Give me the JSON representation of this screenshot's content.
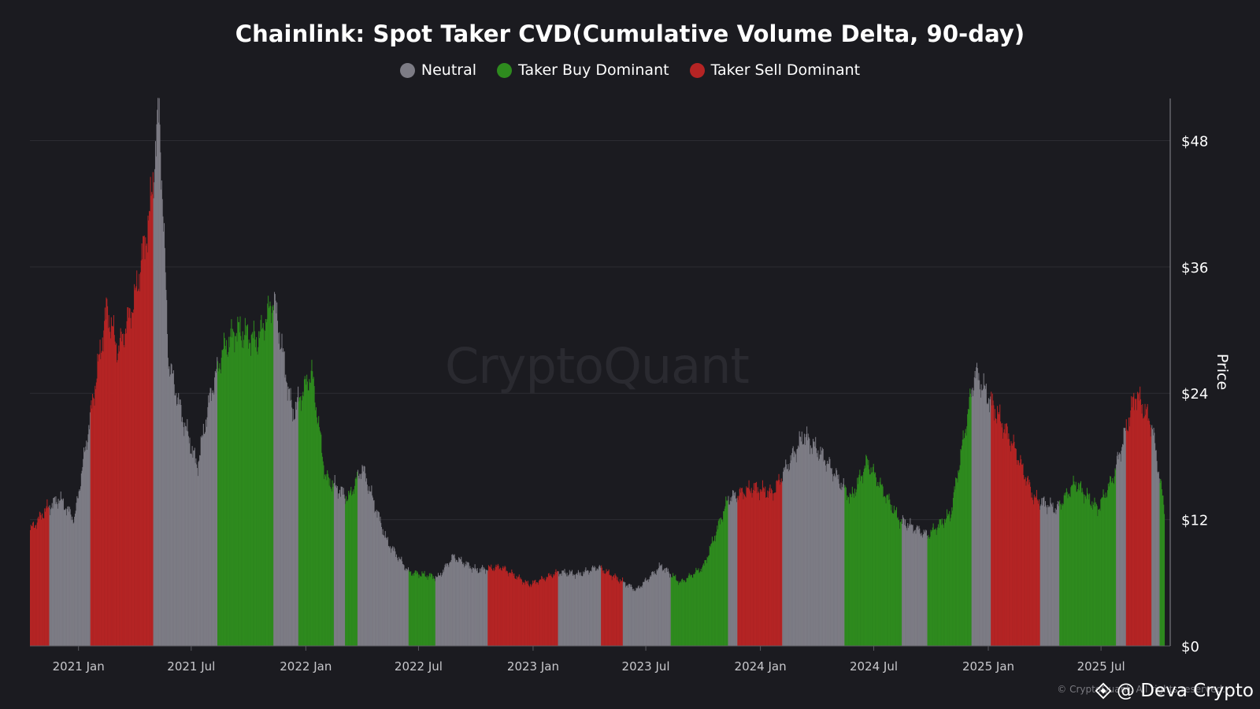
{
  "chart_data": {
    "type": "bar",
    "title": "Chainlink: Spot Taker CVD(Cumulative Volume Delta, 90-day)",
    "ylabel": "Price",
    "ylim": [
      0,
      52
    ],
    "y_ticks": [
      "$0",
      "$12",
      "$24",
      "$36",
      "$48"
    ],
    "y_tick_values": [
      0,
      12,
      24,
      36,
      48
    ],
    "x_ticks": [
      "2021 Jan",
      "2021 Jul",
      "2022 Jan",
      "2022 Jul",
      "2023 Jan",
      "2023 Jul",
      "2024 Jan",
      "2024 Jul",
      "2025 Jan",
      "2025 Jul"
    ],
    "x_tick_dates": [
      "2021-01-01",
      "2021-07-01",
      "2022-01-01",
      "2022-07-01",
      "2023-01-01",
      "2023-07-01",
      "2024-01-01",
      "2024-07-01",
      "2025-01-01",
      "2025-07-01"
    ],
    "x_range": [
      "2020-10-15",
      "2025-10-10"
    ],
    "legend": [
      {
        "name": "Neutral",
        "color": "#7d7c85"
      },
      {
        "name": "Taker Buy Dominant",
        "color": "#2e8b1e"
      },
      {
        "name": "Taker Sell Dominant",
        "color": "#b52424"
      }
    ],
    "series": [
      {
        "name": "Price",
        "points": [
          [
            "2020-10-15",
            11.0
          ],
          [
            "2020-11-10",
            13.0
          ],
          [
            "2020-12-01",
            14.0
          ],
          [
            "2020-12-25",
            12.0
          ],
          [
            "2021-01-20",
            22.0
          ],
          [
            "2021-02-15",
            32.0
          ],
          [
            "2021-03-05",
            28.0
          ],
          [
            "2021-04-01",
            33.0
          ],
          [
            "2021-04-25",
            41.0
          ],
          [
            "2021-05-10",
            51.0
          ],
          [
            "2021-05-25",
            27.0
          ],
          [
            "2021-06-15",
            22.0
          ],
          [
            "2021-07-10",
            17.0
          ],
          [
            "2021-08-01",
            24.0
          ],
          [
            "2021-08-20",
            28.0
          ],
          [
            "2021-09-10",
            30.0
          ],
          [
            "2021-10-15",
            29.0
          ],
          [
            "2021-11-10",
            33.0
          ],
          [
            "2021-12-10",
            22.0
          ],
          [
            "2022-01-10",
            26.0
          ],
          [
            "2022-02-01",
            16.0
          ],
          [
            "2022-03-10",
            14.0
          ],
          [
            "2022-04-01",
            17.0
          ],
          [
            "2022-05-10",
            10.0
          ],
          [
            "2022-06-15",
            7.0
          ],
          [
            "2022-08-01",
            6.5
          ],
          [
            "2022-08-25",
            8.5
          ],
          [
            "2022-10-01",
            7.2
          ],
          [
            "2022-11-10",
            7.5
          ],
          [
            "2022-12-25",
            5.8
          ],
          [
            "2023-02-10",
            7.0
          ],
          [
            "2023-03-15",
            6.8
          ],
          [
            "2023-04-15",
            7.5
          ],
          [
            "2023-06-15",
            5.3
          ],
          [
            "2023-07-25",
            7.6
          ],
          [
            "2023-08-25",
            6.0
          ],
          [
            "2023-10-01",
            7.5
          ],
          [
            "2023-11-10",
            14.0
          ],
          [
            "2023-12-20",
            15.0
          ],
          [
            "2024-01-20",
            14.5
          ],
          [
            "2024-03-10",
            20.0
          ],
          [
            "2024-04-10",
            18.0
          ],
          [
            "2024-05-25",
            14.0
          ],
          [
            "2024-06-20",
            17.5
          ],
          [
            "2024-08-10",
            12.0
          ],
          [
            "2024-09-25",
            10.5
          ],
          [
            "2024-11-01",
            12.5
          ],
          [
            "2024-12-10",
            26.0
          ],
          [
            "2025-01-15",
            22.0
          ],
          [
            "2025-02-10",
            19.0
          ],
          [
            "2025-03-15",
            14.0
          ],
          [
            "2025-04-20",
            13.0
          ],
          [
            "2025-05-20",
            15.5
          ],
          [
            "2025-06-25",
            13.0
          ],
          [
            "2025-07-20",
            16.0
          ],
          [
            "2025-08-25",
            24.0
          ],
          [
            "2025-09-20",
            21.0
          ],
          [
            "2025-10-10",
            13.0
          ]
        ]
      }
    ],
    "regimes": [
      {
        "start": "2020-10-15",
        "end": "2020-11-15",
        "state": "Taker Sell Dominant"
      },
      {
        "start": "2020-11-15",
        "end": "2021-01-20",
        "state": "Neutral"
      },
      {
        "start": "2021-01-20",
        "end": "2021-05-01",
        "state": "Taker Sell Dominant"
      },
      {
        "start": "2021-05-01",
        "end": "2021-08-12",
        "state": "Neutral"
      },
      {
        "start": "2021-08-12",
        "end": "2021-11-10",
        "state": "Taker Buy Dominant"
      },
      {
        "start": "2021-11-10",
        "end": "2021-12-20",
        "state": "Neutral"
      },
      {
        "start": "2021-12-20",
        "end": "2022-02-15",
        "state": "Taker Buy Dominant"
      },
      {
        "start": "2022-02-15",
        "end": "2022-03-05",
        "state": "Neutral"
      },
      {
        "start": "2022-03-05",
        "end": "2022-03-25",
        "state": "Taker Buy Dominant"
      },
      {
        "start": "2022-03-25",
        "end": "2022-06-15",
        "state": "Neutral"
      },
      {
        "start": "2022-06-15",
        "end": "2022-07-28",
        "state": "Taker Buy Dominant"
      },
      {
        "start": "2022-07-28",
        "end": "2022-10-20",
        "state": "Neutral"
      },
      {
        "start": "2022-10-20",
        "end": "2023-02-10",
        "state": "Taker Sell Dominant"
      },
      {
        "start": "2023-02-10",
        "end": "2023-04-20",
        "state": "Neutral"
      },
      {
        "start": "2023-04-20",
        "end": "2023-05-25",
        "state": "Taker Sell Dominant"
      },
      {
        "start": "2023-05-25",
        "end": "2023-08-10",
        "state": "Neutral"
      },
      {
        "start": "2023-08-10",
        "end": "2023-11-10",
        "state": "Taker Buy Dominant"
      },
      {
        "start": "2023-11-10",
        "end": "2023-11-25",
        "state": "Neutral"
      },
      {
        "start": "2023-11-25",
        "end": "2024-02-05",
        "state": "Taker Sell Dominant"
      },
      {
        "start": "2024-02-05",
        "end": "2024-05-15",
        "state": "Neutral"
      },
      {
        "start": "2024-05-15",
        "end": "2024-08-15",
        "state": "Taker Buy Dominant"
      },
      {
        "start": "2024-08-15",
        "end": "2024-09-25",
        "state": "Neutral"
      },
      {
        "start": "2024-09-25",
        "end": "2024-12-05",
        "state": "Taker Buy Dominant"
      },
      {
        "start": "2024-12-05",
        "end": "2025-01-05",
        "state": "Neutral"
      },
      {
        "start": "2025-01-05",
        "end": "2025-03-25",
        "state": "Taker Sell Dominant"
      },
      {
        "start": "2025-03-25",
        "end": "2025-04-25",
        "state": "Neutral"
      },
      {
        "start": "2025-04-25",
        "end": "2025-07-25",
        "state": "Taker Buy Dominant"
      },
      {
        "start": "2025-07-25",
        "end": "2025-08-10",
        "state": "Neutral"
      },
      {
        "start": "2025-08-10",
        "end": "2025-09-20",
        "state": "Taker Sell Dominant"
      },
      {
        "start": "2025-09-20",
        "end": "2025-10-03",
        "state": "Neutral"
      },
      {
        "start": "2025-10-03",
        "end": "2025-10-10",
        "state": "Taker Buy Dominant"
      }
    ],
    "grid": true,
    "legend_position": "top-center"
  },
  "watermark_text": "CryptoQuant",
  "copyright_text": "© CryptoQuant. All rights reserved.",
  "author_text": "@ Deva Crypto",
  "author_icon": "binance-diamond-icon"
}
